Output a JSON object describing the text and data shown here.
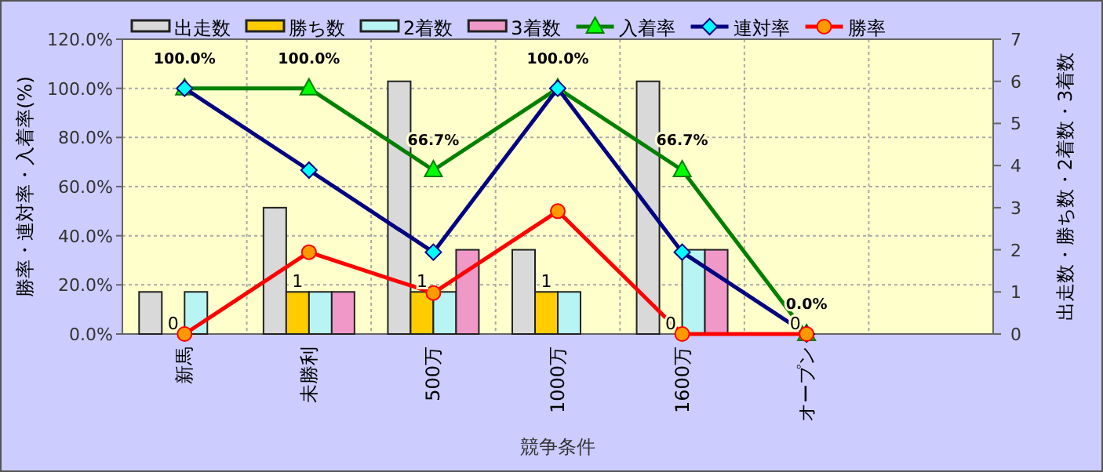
{
  "chart_data": {
    "type": "bar",
    "categories": [
      "新馬",
      "未勝利",
      "500万",
      "1000万",
      "1600万",
      "オープン",
      null
    ],
    "xlabel": "競争条件",
    "ylabel": "勝率・連対率・入着率(%)",
    "y2label": "出走数・勝ち数・2着数・3着数",
    "ylim": [
      0,
      120
    ],
    "yticks": [
      {
        "value": 0,
        "label": "0.0%"
      },
      {
        "value": 20,
        "label": "20.0%"
      },
      {
        "value": 40,
        "label": "40.0%"
      },
      {
        "value": 60,
        "label": "60.0%"
      },
      {
        "value": 80,
        "label": "80.0%"
      },
      {
        "value": 100,
        "label": "100.0%"
      },
      {
        "value": 120,
        "label": "120.0%"
      }
    ],
    "y2lim": [
      0,
      7
    ],
    "y2ticks": [
      0,
      1,
      2,
      3,
      4,
      5,
      6,
      7
    ],
    "grid": true,
    "legend": "top",
    "series": [
      {
        "name": "出走数",
        "axis": "y2",
        "color": "#d9d9d9",
        "values": [
          1,
          3,
          6,
          2,
          6,
          0,
          null
        ]
      },
      {
        "name": "勝ち数",
        "axis": "y2",
        "color": "#ffcc00",
        "values": [
          0,
          1,
          1,
          1,
          0,
          0,
          null
        ],
        "value_labels": [
          "0",
          "1",
          "1",
          "1",
          "0",
          "0",
          null
        ]
      },
      {
        "name": "2着数",
        "axis": "y2",
        "color": "#b8f4f4",
        "values": [
          1,
          1,
          1,
          1,
          2,
          0,
          null
        ]
      },
      {
        "name": "3着数",
        "axis": "y2",
        "color": "#f099c8",
        "values": [
          0,
          1,
          2,
          0,
          2,
          0,
          null
        ]
      },
      {
        "name": "入着率",
        "type": "line",
        "axis": "y",
        "color": "#008000",
        "marker": "triangle",
        "values": [
          100,
          100,
          66.7,
          100,
          66.7,
          0,
          null
        ],
        "value_labels": [
          "100.0%",
          "100.0%",
          "66.7%",
          "100.0%",
          "66.7%",
          "0.0%",
          null
        ]
      },
      {
        "name": "連対率",
        "type": "line",
        "axis": "y",
        "color": "#000080",
        "marker": "diamond",
        "values": [
          100,
          66.7,
          33.3,
          100,
          33.3,
          0,
          null
        ]
      },
      {
        "name": "勝率",
        "type": "line",
        "axis": "y",
        "color": "#ff0000",
        "marker": "circle",
        "values": [
          0,
          33.3,
          16.7,
          50,
          0,
          0,
          null
        ]
      }
    ]
  }
}
